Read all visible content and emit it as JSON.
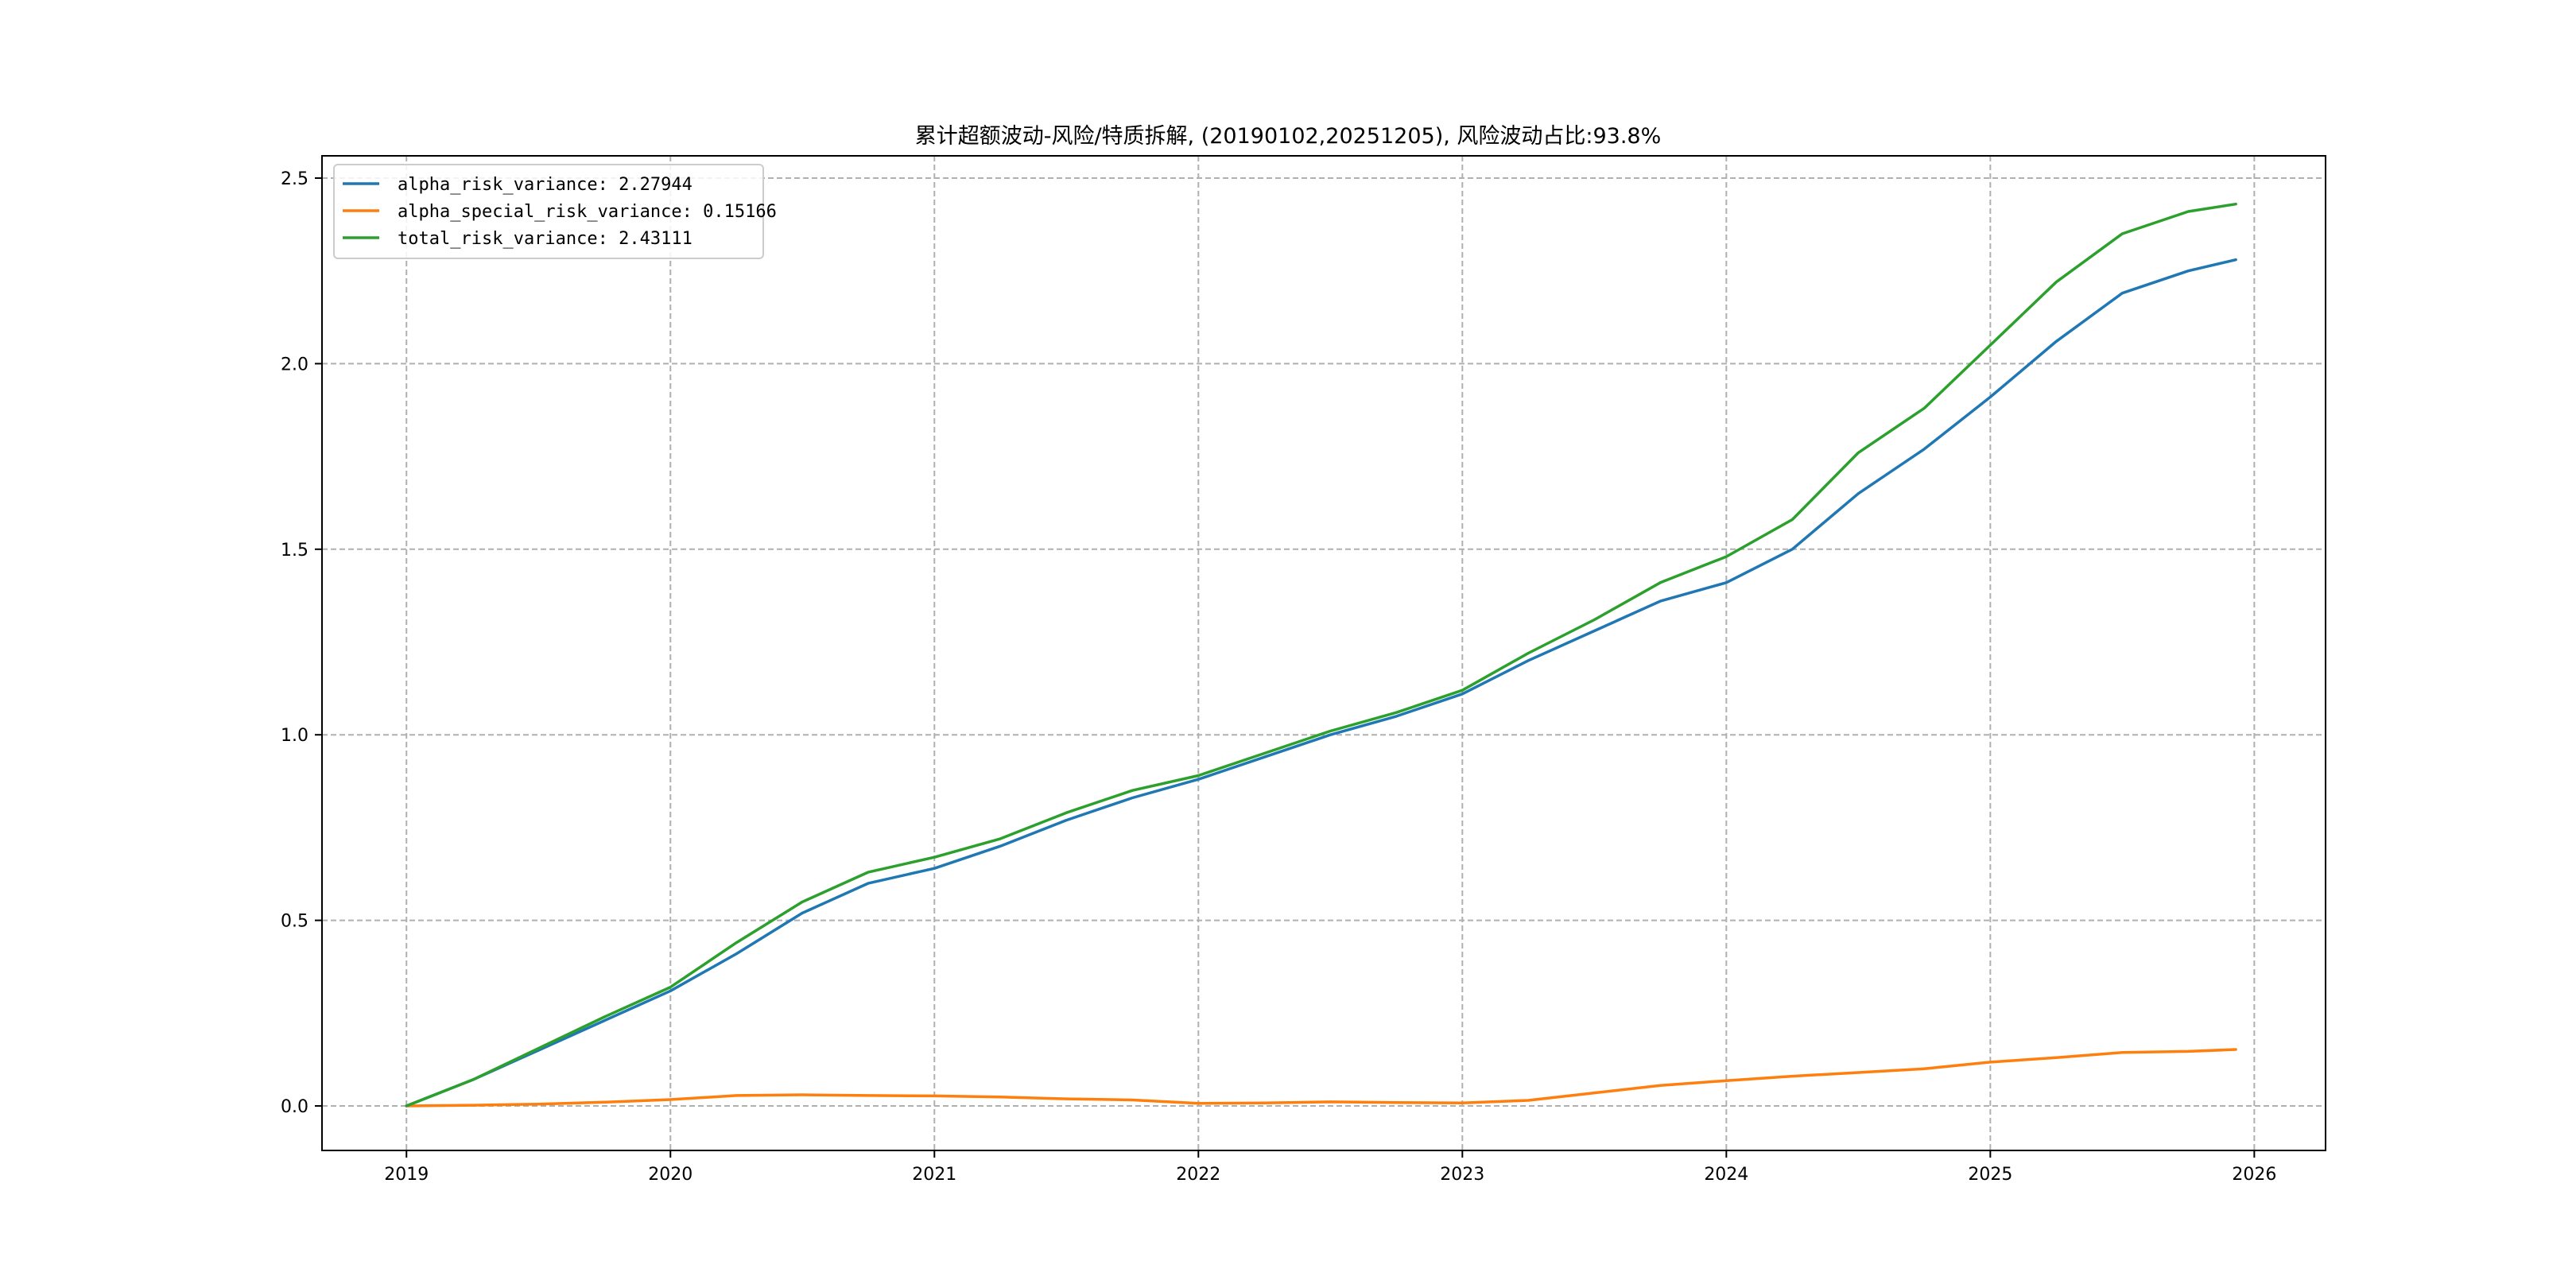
{
  "chart_data": {
    "type": "line",
    "title": "累计超额波动-风险/特质拆解, (20190102,20251205), 风险波动占比:93.8%",
    "xlabel": "",
    "ylabel": "",
    "xlim": [
      2018.68,
      2026.27
    ],
    "ylim": [
      -0.12,
      2.56
    ],
    "grid": true,
    "legend_position": "upper-left",
    "xticks": [
      2019,
      2020,
      2021,
      2022,
      2023,
      2024,
      2025,
      2026
    ],
    "xtick_labels": [
      "2019",
      "2020",
      "2021",
      "2022",
      "2023",
      "2024",
      "2025",
      "2026"
    ],
    "yticks": [
      0.0,
      0.5,
      1.0,
      1.5,
      2.0,
      2.5
    ],
    "ytick_labels": [
      "0.0",
      "0.5",
      "1.0",
      "1.5",
      "2.0",
      "2.5"
    ],
    "x": [
      2019.0,
      2019.25,
      2019.5,
      2019.75,
      2020.0,
      2020.25,
      2020.5,
      2020.75,
      2021.0,
      2021.25,
      2021.5,
      2021.75,
      2022.0,
      2022.25,
      2022.5,
      2022.75,
      2023.0,
      2023.25,
      2023.5,
      2023.75,
      2024.0,
      2024.25,
      2024.5,
      2024.75,
      2025.0,
      2025.25,
      2025.5,
      2025.75,
      2025.93
    ],
    "series": [
      {
        "name": "alpha_risk_variance: 2.27944",
        "color": "#1f77b4",
        "values": [
          0.0,
          0.07,
          0.15,
          0.23,
          0.31,
          0.41,
          0.52,
          0.6,
          0.64,
          0.7,
          0.77,
          0.83,
          0.88,
          0.94,
          1.0,
          1.05,
          1.11,
          1.2,
          1.28,
          1.36,
          1.41,
          1.5,
          1.65,
          1.77,
          1.91,
          2.06,
          2.19,
          2.25,
          2.28
        ]
      },
      {
        "name": "alpha_special_risk_variance: 0.15166",
        "color": "#ff7f0e",
        "values": [
          0.0,
          0.002,
          0.005,
          0.01,
          0.017,
          0.028,
          0.03,
          0.028,
          0.027,
          0.024,
          0.019,
          0.016,
          0.007,
          0.008,
          0.011,
          0.009,
          0.008,
          0.015,
          0.035,
          0.055,
          0.068,
          0.08,
          0.09,
          0.1,
          0.118,
          0.13,
          0.144,
          0.147,
          0.152
        ]
      },
      {
        "name": "total_risk_variance: 2.43111",
        "color": "#2ca02c",
        "values": [
          0.0,
          0.07,
          0.155,
          0.24,
          0.32,
          0.44,
          0.55,
          0.63,
          0.67,
          0.72,
          0.79,
          0.85,
          0.89,
          0.95,
          1.01,
          1.06,
          1.12,
          1.22,
          1.31,
          1.41,
          1.48,
          1.58,
          1.76,
          1.88,
          2.05,
          2.22,
          2.35,
          2.41,
          2.43
        ]
      }
    ]
  }
}
